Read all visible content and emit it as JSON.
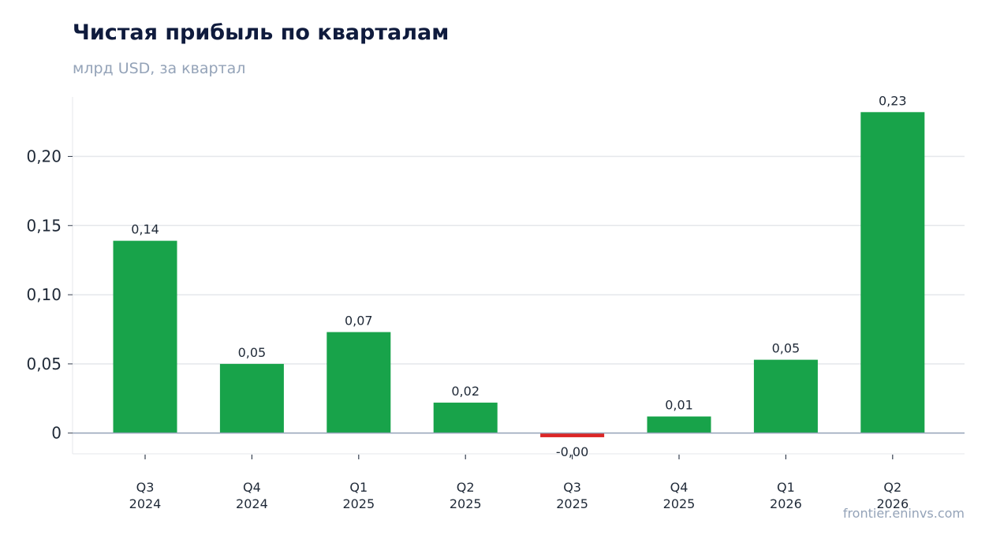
{
  "header": {
    "title": "Чистая прибыль по кварталам",
    "subtitle": "млрд USD, за квартал"
  },
  "watermark": "frontier.eninvs.com",
  "chart_data": {
    "type": "bar",
    "title": "Чистая прибыль по кварталам",
    "subtitle": "млрд USD, за квартал",
    "xlabel": "",
    "ylabel": "",
    "categories": [
      [
        "Q3",
        "2024"
      ],
      [
        "Q4",
        "2024"
      ],
      [
        "Q1",
        "2025"
      ],
      [
        "Q2",
        "2025"
      ],
      [
        "Q3",
        "2025"
      ],
      [
        "Q4",
        "2025"
      ],
      [
        "Q1",
        "2026"
      ],
      [
        "Q2",
        "2026"
      ]
    ],
    "values": [
      0.139,
      0.05,
      0.073,
      0.022,
      -0.003,
      0.012,
      0.053,
      0.232
    ],
    "data_labels": [
      "0,14",
      "0,05",
      "0,07",
      "0,02",
      "-0,00",
      "0,01",
      "0,05",
      "0,23"
    ],
    "yticks": [
      0,
      0.05,
      0.1,
      0.15,
      0.2
    ],
    "ytick_labels": [
      "0",
      "0,05",
      "0,10",
      "0,15",
      "0,20"
    ],
    "ylim": [
      -0.015,
      0.243
    ],
    "grid": true,
    "legend": "none",
    "colors": {
      "positive": "#18a34a",
      "negative": "#dc2626",
      "grid": "#e5e7eb",
      "zero_line": "#94a3b8"
    }
  }
}
